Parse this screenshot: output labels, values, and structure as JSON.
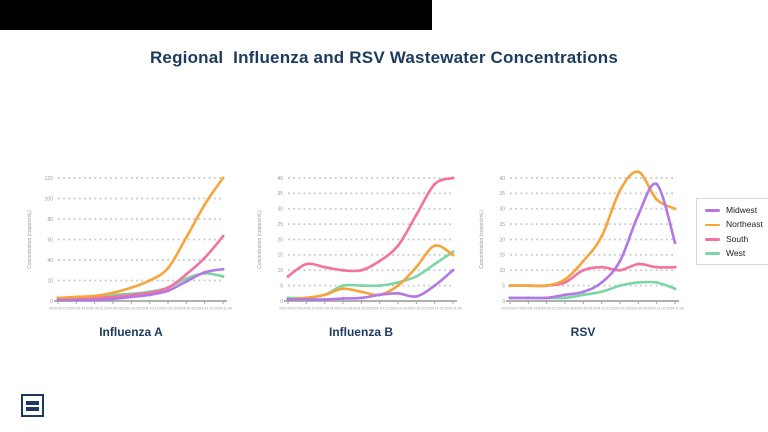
{
  "page": {
    "title": "Regional  Influenza and RSV Wastewater Concentrations"
  },
  "colors": {
    "navy": "#1c3a5e",
    "midwest": "#b377e6",
    "northeast": "#f5a53c",
    "south": "#f4729f",
    "west": "#7cd6a2",
    "grid": "#c8c8c8",
    "axis_line": "#a5a5a5",
    "tick_text": "#9a9a9a"
  },
  "legend": {
    "items": [
      {
        "label": "Midwest",
        "color": "#b377e6"
      },
      {
        "label": "Northeast",
        "color": "#f5a53c"
      },
      {
        "label": "South",
        "color": "#f4729f"
      },
      {
        "label": "West",
        "color": "#7cd6a2"
      }
    ]
  },
  "footer": {
    "logo_icon": "brand-logo"
  },
  "chart_data": [
    {
      "type": "line",
      "title": "Influenza A",
      "ylabel": "Concentration (copies/mL)",
      "xlabel": "",
      "grid": "dotted-horizontal",
      "legend_position": "shared-right",
      "ylim": [
        0,
        126
      ],
      "yticks": [
        0,
        20,
        40,
        60,
        80,
        100,
        120
      ],
      "x": [
        "2024-09-07",
        "2024-09-14",
        "2024-09-21",
        "2024-09-28",
        "2024-10-05",
        "2024-10-12",
        "2024-10-19",
        "2024-10-26",
        "2024-11-02",
        "2024-11-09"
      ],
      "series": [
        {
          "name": "West",
          "color": "#7cd6a2",
          "values": [
            3,
            3,
            4,
            6,
            7,
            9,
            13,
            22,
            27,
            24
          ]
        },
        {
          "name": "South",
          "color": "#f4729f",
          "values": [
            3,
            3,
            3,
            4,
            6,
            8,
            13,
            26,
            42,
            63
          ]
        },
        {
          "name": "Northeast",
          "color": "#f5a53c",
          "values": [
            3,
            4,
            5,
            8,
            13,
            20,
            32,
            62,
            94,
            120
          ]
        },
        {
          "name": "Midwest",
          "color": "#b377e6",
          "values": [
            1,
            1,
            1,
            2,
            4,
            6,
            10,
            19,
            28,
            31
          ]
        }
      ]
    },
    {
      "type": "line",
      "title": "Influenza B",
      "ylabel": "Concentration (copies/mL)",
      "xlabel": "",
      "grid": "dotted-horizontal",
      "legend_position": "shared-right",
      "ylim": [
        0,
        42
      ],
      "yticks": [
        0,
        5,
        10,
        15,
        20,
        25,
        30,
        35,
        40
      ],
      "x": [
        "2024-09-07",
        "2024-09-14",
        "2024-09-21",
        "2024-09-28",
        "2024-10-05",
        "2024-10-12",
        "2024-10-19",
        "2024-10-26",
        "2024-11-02",
        "2024-11-09"
      ],
      "series": [
        {
          "name": "West",
          "color": "#7cd6a2",
          "values": [
            1,
            1,
            2,
            5,
            5,
            5,
            6,
            8,
            12,
            16
          ]
        },
        {
          "name": "South",
          "color": "#f4729f",
          "values": [
            8,
            12,
            11,
            10,
            10,
            13,
            18,
            28,
            38,
            40
          ]
        },
        {
          "name": "Northeast",
          "color": "#f5a53c",
          "values": [
            0.5,
            1,
            2,
            4,
            3,
            2,
            5,
            11,
            18,
            15
          ]
        },
        {
          "name": "Midwest",
          "color": "#b377e6",
          "values": [
            0.5,
            0.5,
            0.5,
            0.8,
            1,
            2,
            2.5,
            1.5,
            5,
            10
          ]
        }
      ]
    },
    {
      "type": "line",
      "title": "RSV",
      "ylabel": "Concentration (copies/mL)",
      "xlabel": "",
      "grid": "dotted-horizontal",
      "legend_position": "shared-right",
      "ylim": [
        0,
        44
      ],
      "yticks": [
        0,
        5,
        10,
        15,
        20,
        25,
        30,
        35,
        40
      ],
      "x": [
        "2024-09-07",
        "2024-09-14",
        "2024-09-21",
        "2024-09-28",
        "2024-10-05",
        "2024-10-12",
        "2024-10-19",
        "2024-10-26",
        "2024-11-02",
        "2024-11-09"
      ],
      "series": [
        {
          "name": "West",
          "color": "#7cd6a2",
          "values": [
            1,
            1,
            1,
            1,
            2,
            3,
            5,
            6,
            6,
            4
          ]
        },
        {
          "name": "South",
          "color": "#f4729f",
          "values": [
            5,
            5,
            5,
            6,
            10,
            11,
            10,
            12,
            11,
            11
          ]
        },
        {
          "name": "Northeast",
          "color": "#f5a53c",
          "values": [
            5,
            5,
            5,
            7,
            13,
            21,
            36,
            42,
            33,
            30
          ]
        },
        {
          "name": "Midwest",
          "color": "#b377e6",
          "values": [
            1,
            1,
            1,
            2,
            3,
            6,
            13,
            28,
            38,
            19
          ]
        }
      ]
    }
  ]
}
